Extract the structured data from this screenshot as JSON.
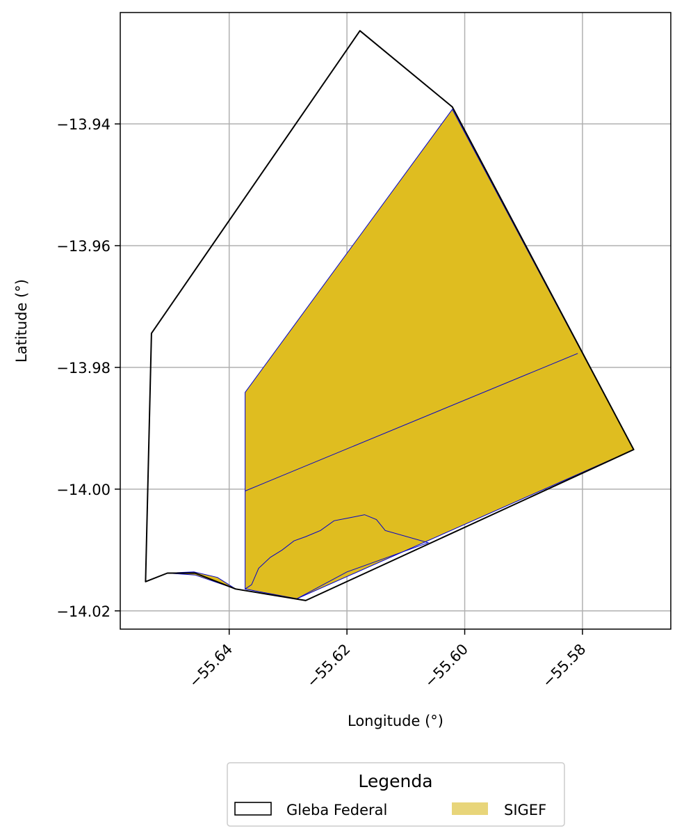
{
  "chart_data": {
    "type": "map",
    "xlabel": "Longitude (°)",
    "ylabel": "Latitude (°)",
    "xlim": [
      -55.6585,
      -55.565
    ],
    "ylim": [
      -14.023,
      -13.9217
    ],
    "x_ticks": [
      -55.64,
      -55.62,
      -55.6,
      -55.58
    ],
    "x_tick_labels": [
      "−55.64",
      "−55.62",
      "−55.60",
      "−55.58"
    ],
    "y_ticks": [
      -13.94,
      -13.96,
      -13.98,
      -14.0,
      -14.02
    ],
    "y_tick_labels": [
      "−13.94",
      "−13.96",
      "−13.98",
      "−14.00",
      "−14.02"
    ],
    "grid": true,
    "colors": {
      "gleba_edge": "#000000",
      "sigef_fill": "#dfbd20",
      "sigef_legend_fill": "#e8d57a",
      "sigef_edge": "#0000cc",
      "grid": "#b0b0b0"
    },
    "legend": {
      "title": "Legenda",
      "placement": "bottom-center-outside",
      "entries": [
        {
          "label": "Gleba Federal",
          "style": "outline"
        },
        {
          "label": "SIGEF",
          "style": "fill"
        }
      ]
    },
    "polygons": {
      "gleba_federal": [
        [
          -55.6542,
          -14.0152
        ],
        [
          -55.6532,
          -13.9744
        ],
        [
          -55.6178,
          -13.9247
        ],
        [
          -55.6021,
          -13.9372
        ],
        [
          -55.5713,
          -13.9935
        ],
        [
          -55.627,
          -14.0183
        ],
        [
          -55.6389,
          -14.0164
        ],
        [
          -55.6458,
          -14.0138
        ],
        [
          -55.6505,
          -14.0138
        ],
        [
          -55.6542,
          -14.0152
        ]
      ],
      "sigef_main": [
        [
          -55.6373,
          -13.9841
        ],
        [
          -55.6021,
          -13.9376
        ],
        [
          -55.5713,
          -13.9935
        ],
        [
          -55.6285,
          -14.018
        ],
        [
          -55.6373,
          -14.0164
        ]
      ],
      "sigef_small": [
        [
          -55.6505,
          -14.0138
        ],
        [
          -55.646,
          -14.0136
        ],
        [
          -55.642,
          -14.0145
        ],
        [
          -55.6389,
          -14.0164
        ],
        [
          -55.6458,
          -14.0141
        ]
      ],
      "sigef_division_line": [
        [
          -55.6373,
          -14.0003
        ],
        [
          -55.5808,
          -13.9777
        ]
      ],
      "sigef_inner_boundary": [
        [
          -55.6373,
          -14.0164
        ],
        [
          -55.6362,
          -14.0157
        ],
        [
          -55.635,
          -14.013
        ],
        [
          -55.633,
          -14.0112
        ],
        [
          -55.631,
          -14.01
        ],
        [
          -55.629,
          -14.0085
        ],
        [
          -55.627,
          -14.0078
        ],
        [
          -55.6245,
          -14.0068
        ],
        [
          -55.6222,
          -14.0052
        ],
        [
          -55.6195,
          -14.0047
        ],
        [
          -55.617,
          -14.0042
        ],
        [
          -55.615,
          -14.005
        ],
        [
          -55.6135,
          -14.0068
        ],
        [
          -55.6062,
          -14.0088
        ],
        [
          -55.62,
          -14.0136
        ],
        [
          -55.6285,
          -14.018
        ]
      ]
    }
  }
}
